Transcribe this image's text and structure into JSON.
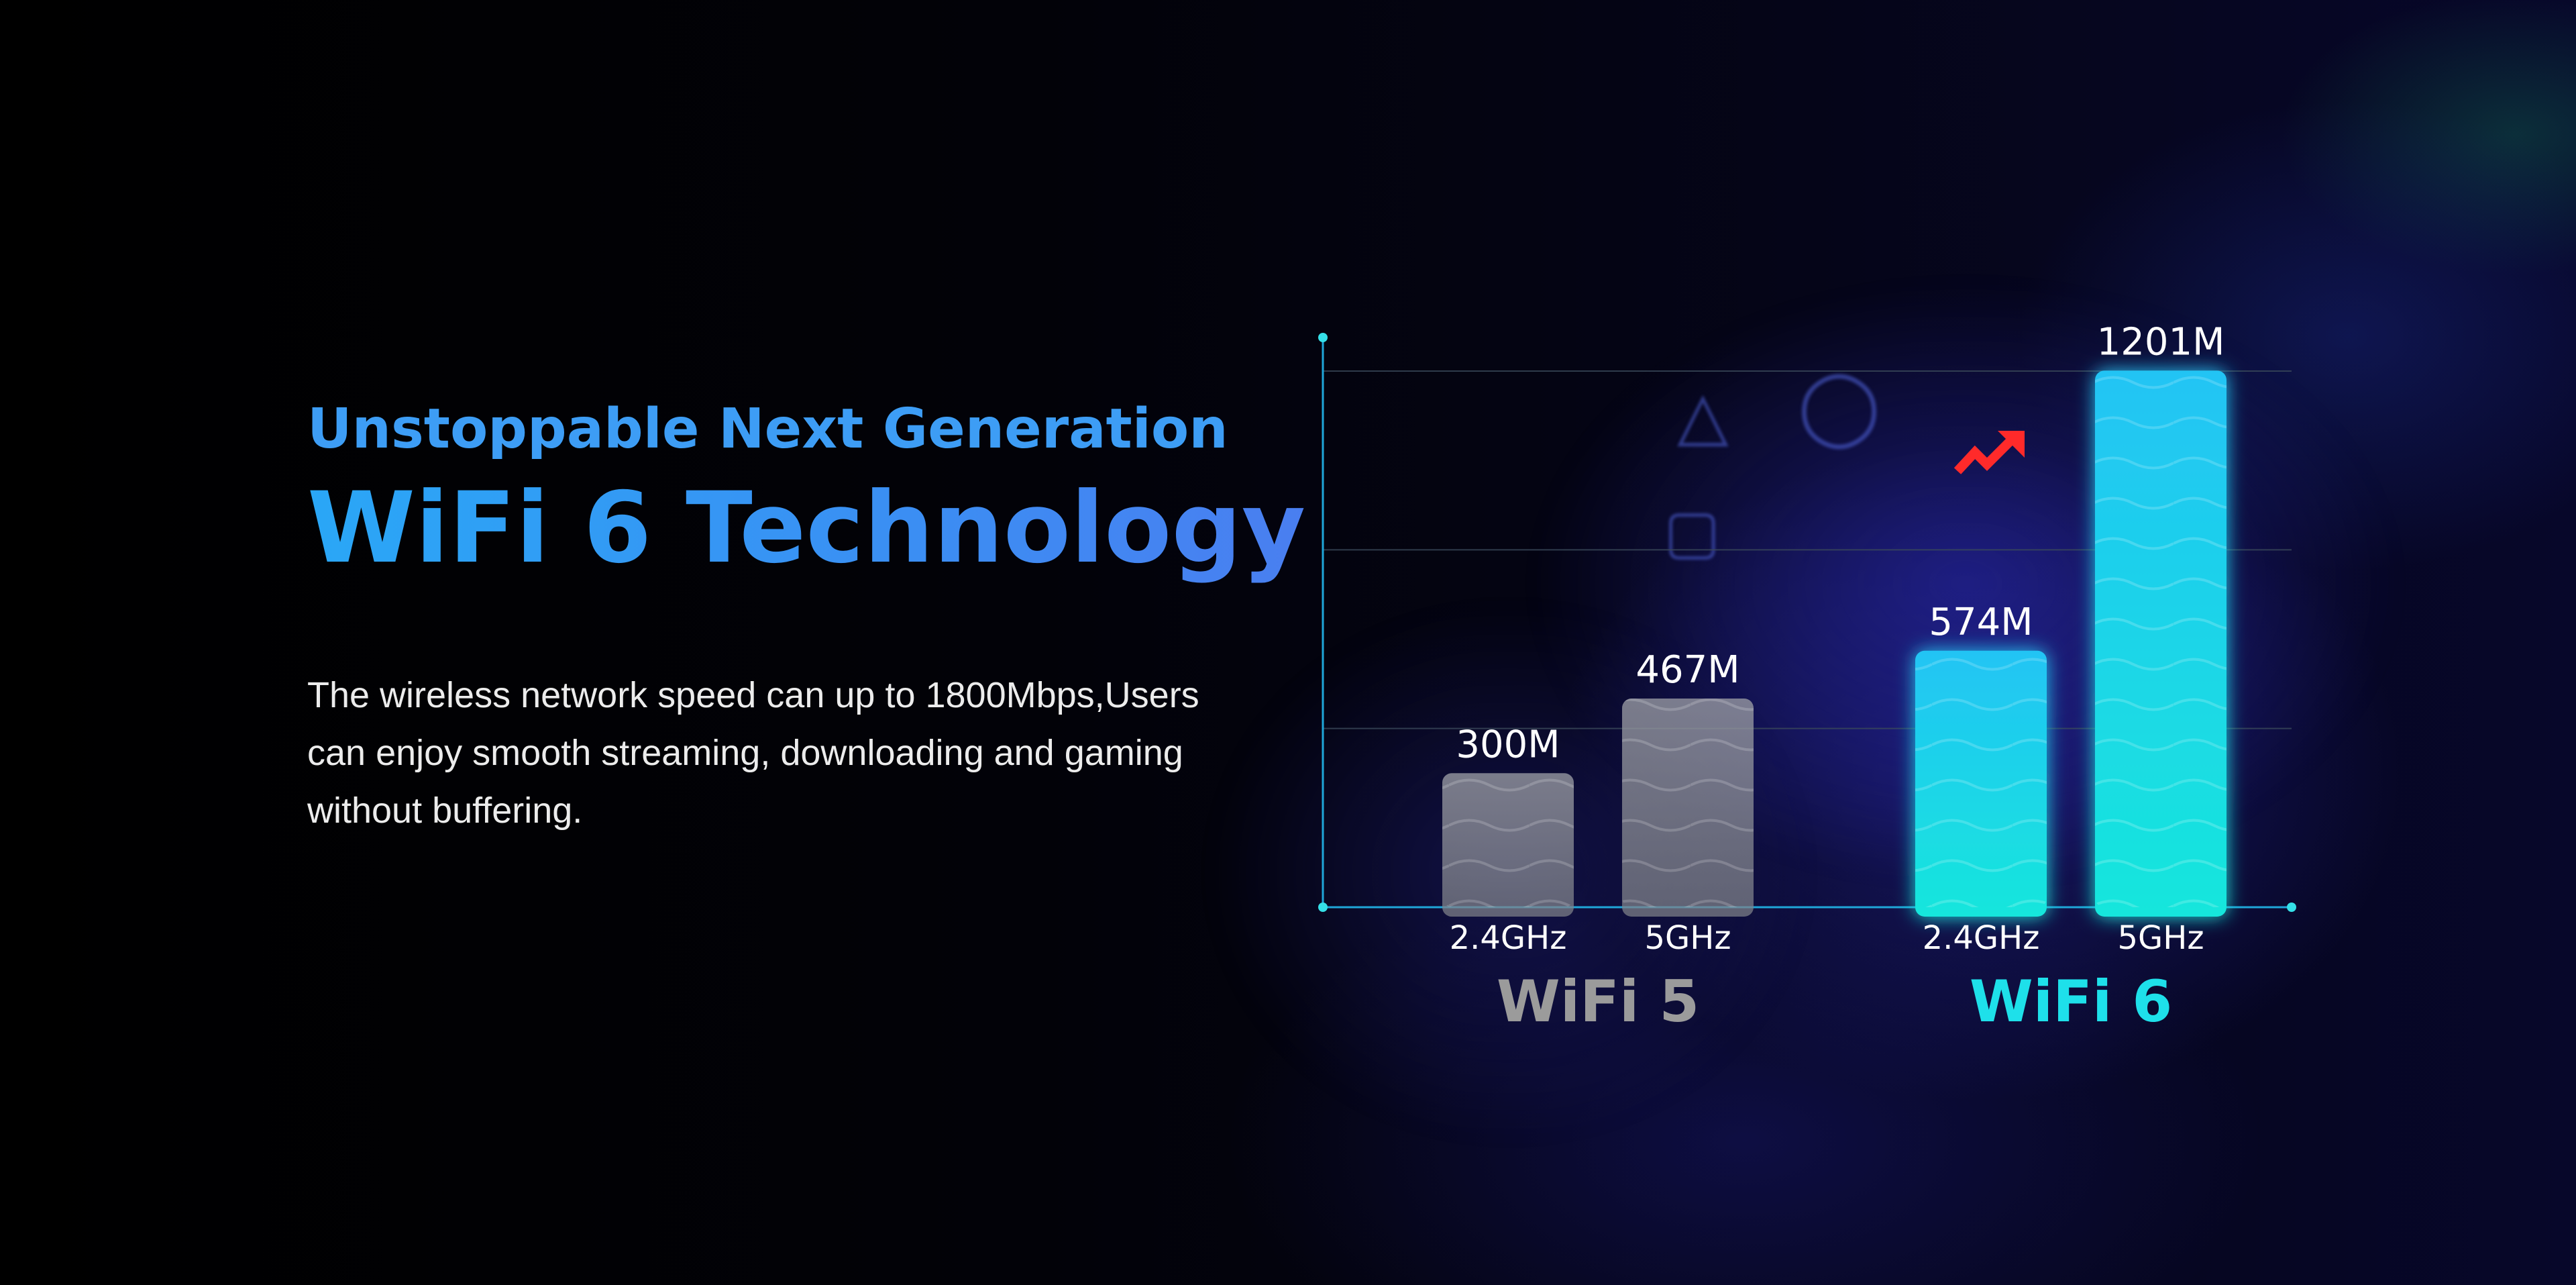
{
  "headline": {
    "subtitle": "Unstoppable Next Generation",
    "title": "WiFi 6 Technology"
  },
  "description": "The wireless network speed can up to 1800Mbps,Users can enjoy smooth streaming, downloading and gaming without buffering.",
  "chart_data": {
    "type": "bar",
    "groups": [
      {
        "name": "WiFi 5",
        "color": "#9a9a9a",
        "bars": [
          {
            "category": "2.4GHz",
            "value": 300,
            "label": "300M"
          },
          {
            "category": "5GHz",
            "value": 467,
            "label": "467M"
          }
        ]
      },
      {
        "name": "WiFi 6",
        "color": "#19e2e8",
        "bars": [
          {
            "category": "2.4GHz",
            "value": 574,
            "label": "574M"
          },
          {
            "category": "5GHz",
            "value": 1201,
            "label": "1201M"
          }
        ]
      }
    ],
    "ylim": [
      0,
      1200
    ],
    "grid": true,
    "colors": {
      "axis": "#1fa6d8",
      "grid": "#3b4a5a",
      "wifi5_bar": "#8c8f96",
      "wifi6_bar_top": "#1fc8f2",
      "wifi6_bar_bottom": "#19e6e0",
      "arrow": "#ff2a2a"
    },
    "annotation_icon": "trend-up-arrow-icon"
  }
}
